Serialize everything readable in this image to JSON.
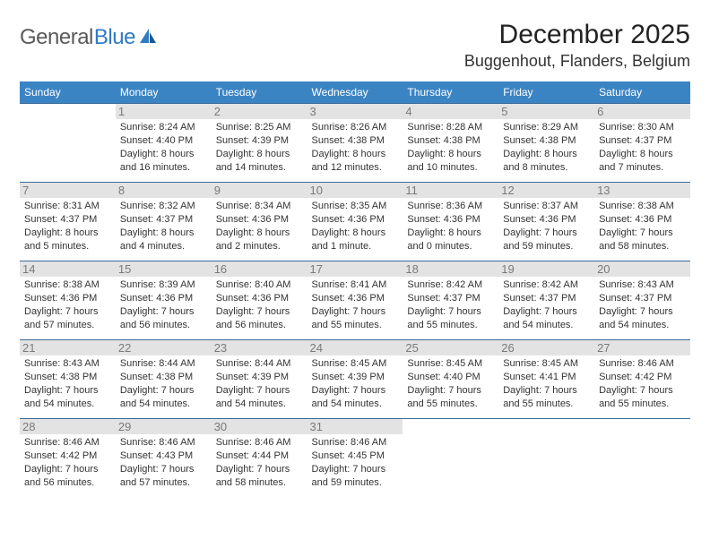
{
  "brand": {
    "name_a": "General",
    "name_b": "Blue"
  },
  "title": "December 2025",
  "location": "Buggenhout, Flanders, Belgium",
  "colors": {
    "header_bg": "#3b84c4",
    "header_text": "#ffffff",
    "row_border": "#3b6a97",
    "daynum_color": "#7a7a7a",
    "shade_bg": "#e3e3e3",
    "body_text": "#333333",
    "brand_gray": "#5a5a5a",
    "brand_blue": "#2f7bc3"
  },
  "weekdays": [
    "Sunday",
    "Monday",
    "Tuesday",
    "Wednesday",
    "Thursday",
    "Friday",
    "Saturday"
  ],
  "weeks": [
    [
      null,
      {
        "n": "1",
        "sr": "8:24 AM",
        "ss": "4:40 PM",
        "dl": "8 hours and 16 minutes."
      },
      {
        "n": "2",
        "sr": "8:25 AM",
        "ss": "4:39 PM",
        "dl": "8 hours and 14 minutes."
      },
      {
        "n": "3",
        "sr": "8:26 AM",
        "ss": "4:38 PM",
        "dl": "8 hours and 12 minutes."
      },
      {
        "n": "4",
        "sr": "8:28 AM",
        "ss": "4:38 PM",
        "dl": "8 hours and 10 minutes."
      },
      {
        "n": "5",
        "sr": "8:29 AM",
        "ss": "4:38 PM",
        "dl": "8 hours and 8 minutes."
      },
      {
        "n": "6",
        "sr": "8:30 AM",
        "ss": "4:37 PM",
        "dl": "8 hours and 7 minutes."
      }
    ],
    [
      {
        "n": "7",
        "sr": "8:31 AM",
        "ss": "4:37 PM",
        "dl": "8 hours and 5 minutes."
      },
      {
        "n": "8",
        "sr": "8:32 AM",
        "ss": "4:37 PM",
        "dl": "8 hours and 4 minutes."
      },
      {
        "n": "9",
        "sr": "8:34 AM",
        "ss": "4:36 PM",
        "dl": "8 hours and 2 minutes."
      },
      {
        "n": "10",
        "sr": "8:35 AM",
        "ss": "4:36 PM",
        "dl": "8 hours and 1 minute."
      },
      {
        "n": "11",
        "sr": "8:36 AM",
        "ss": "4:36 PM",
        "dl": "8 hours and 0 minutes."
      },
      {
        "n": "12",
        "sr": "8:37 AM",
        "ss": "4:36 PM",
        "dl": "7 hours and 59 minutes."
      },
      {
        "n": "13",
        "sr": "8:38 AM",
        "ss": "4:36 PM",
        "dl": "7 hours and 58 minutes."
      }
    ],
    [
      {
        "n": "14",
        "sr": "8:38 AM",
        "ss": "4:36 PM",
        "dl": "7 hours and 57 minutes."
      },
      {
        "n": "15",
        "sr": "8:39 AM",
        "ss": "4:36 PM",
        "dl": "7 hours and 56 minutes."
      },
      {
        "n": "16",
        "sr": "8:40 AM",
        "ss": "4:36 PM",
        "dl": "7 hours and 56 minutes."
      },
      {
        "n": "17",
        "sr": "8:41 AM",
        "ss": "4:36 PM",
        "dl": "7 hours and 55 minutes."
      },
      {
        "n": "18",
        "sr": "8:42 AM",
        "ss": "4:37 PM",
        "dl": "7 hours and 55 minutes."
      },
      {
        "n": "19",
        "sr": "8:42 AM",
        "ss": "4:37 PM",
        "dl": "7 hours and 54 minutes."
      },
      {
        "n": "20",
        "sr": "8:43 AM",
        "ss": "4:37 PM",
        "dl": "7 hours and 54 minutes."
      }
    ],
    [
      {
        "n": "21",
        "sr": "8:43 AM",
        "ss": "4:38 PM",
        "dl": "7 hours and 54 minutes."
      },
      {
        "n": "22",
        "sr": "8:44 AM",
        "ss": "4:38 PM",
        "dl": "7 hours and 54 minutes."
      },
      {
        "n": "23",
        "sr": "8:44 AM",
        "ss": "4:39 PM",
        "dl": "7 hours and 54 minutes."
      },
      {
        "n": "24",
        "sr": "8:45 AM",
        "ss": "4:39 PM",
        "dl": "7 hours and 54 minutes."
      },
      {
        "n": "25",
        "sr": "8:45 AM",
        "ss": "4:40 PM",
        "dl": "7 hours and 55 minutes."
      },
      {
        "n": "26",
        "sr": "8:45 AM",
        "ss": "4:41 PM",
        "dl": "7 hours and 55 minutes."
      },
      {
        "n": "27",
        "sr": "8:46 AM",
        "ss": "4:42 PM",
        "dl": "7 hours and 55 minutes."
      }
    ],
    [
      {
        "n": "28",
        "sr": "8:46 AM",
        "ss": "4:42 PM",
        "dl": "7 hours and 56 minutes."
      },
      {
        "n": "29",
        "sr": "8:46 AM",
        "ss": "4:43 PM",
        "dl": "7 hours and 57 minutes."
      },
      {
        "n": "30",
        "sr": "8:46 AM",
        "ss": "4:44 PM",
        "dl": "7 hours and 58 minutes."
      },
      {
        "n": "31",
        "sr": "8:46 AM",
        "ss": "4:45 PM",
        "dl": "7 hours and 59 minutes."
      },
      null,
      null,
      null
    ]
  ]
}
